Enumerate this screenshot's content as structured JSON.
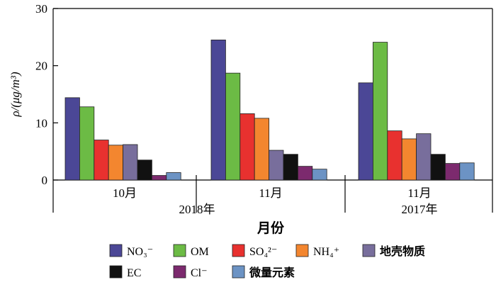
{
  "chart_data": {
    "type": "bar",
    "ylabel": "ρ/(μg/m³)",
    "xlabel": "月份",
    "ylim": [
      0,
      30
    ],
    "yticks": [
      0,
      10,
      20,
      30
    ],
    "grid": false,
    "legend_position": "bottom",
    "groups": [
      {
        "month": "10月",
        "year": "2018年"
      },
      {
        "month": "11月",
        "year": "2018年"
      },
      {
        "month": "11月",
        "year": "2017年"
      }
    ],
    "series": [
      {
        "name": "NO₃⁻",
        "color": "#4b4796",
        "values": [
          14.4,
          24.5,
          17.0
        ]
      },
      {
        "name": "OM",
        "color": "#6cbb45",
        "values": [
          12.8,
          18.7,
          24.1
        ]
      },
      {
        "name": "SO₄²⁻",
        "color": "#e8312f",
        "values": [
          7.0,
          11.6,
          8.6
        ]
      },
      {
        "name": "NH₄⁺",
        "color": "#f3862f",
        "values": [
          6.1,
          10.8,
          7.2
        ]
      },
      {
        "name": "地壳物质",
        "color": "#786e9c",
        "values": [
          6.2,
          5.2,
          8.1
        ]
      },
      {
        "name": "EC",
        "color": "#111111",
        "values": [
          3.5,
          4.5,
          4.5
        ]
      },
      {
        "name": "Cl⁻",
        "color": "#7c2a6e",
        "values": [
          0.8,
          2.4,
          2.9
        ]
      },
      {
        "name": "微量元素",
        "color": "#6c93c4",
        "values": [
          1.3,
          1.9,
          3.0
        ]
      }
    ]
  }
}
